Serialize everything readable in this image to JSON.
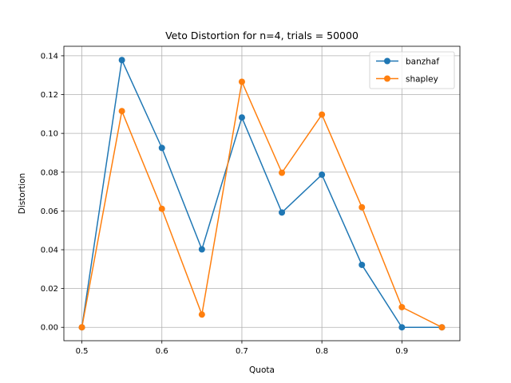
{
  "chart_data": {
    "type": "line",
    "title": "Veto Distortion for n=4, trials = 50000",
    "xlabel": "Quota",
    "ylabel": "Distortion",
    "x": [
      0.5,
      0.55,
      0.6,
      0.65,
      0.7,
      0.75,
      0.8,
      0.85,
      0.9,
      0.95
    ],
    "xlim": [
      0.4775,
      0.9725
    ],
    "ylim": [
      -0.0069,
      0.1449
    ],
    "xticks": [
      0.5,
      0.6,
      0.7,
      0.8,
      0.9
    ],
    "xtick_labels": [
      "0.5",
      "0.6",
      "0.7",
      "0.8",
      "0.9"
    ],
    "yticks": [
      0.0,
      0.02,
      0.04,
      0.06,
      0.08,
      0.1,
      0.12,
      0.14
    ],
    "ytick_labels": [
      "0.00",
      "0.02",
      "0.04",
      "0.06",
      "0.08",
      "0.10",
      "0.12",
      "0.14"
    ],
    "grid": true,
    "legend_position": "top-right",
    "series": [
      {
        "name": "banzhaf",
        "color": "#1f77b4",
        "marker": "circle",
        "values": [
          0.0,
          0.1378,
          0.0925,
          0.0402,
          0.1082,
          0.0592,
          0.0787,
          0.0322,
          0.0,
          0.0
        ]
      },
      {
        "name": "shapley",
        "color": "#ff7f0e",
        "marker": "circle",
        "values": [
          0.0,
          0.1115,
          0.0611,
          0.0066,
          0.1266,
          0.0797,
          0.1097,
          0.0619,
          0.0104,
          0.0
        ]
      }
    ]
  }
}
